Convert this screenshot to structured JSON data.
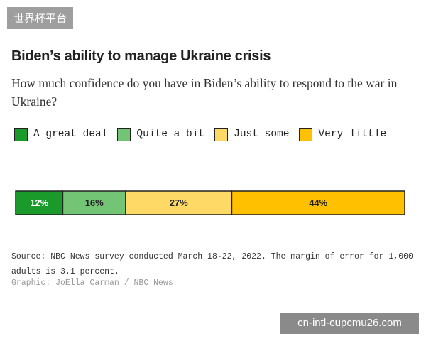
{
  "watermark_top": "世界杯平台",
  "watermark_bottom": "cn-intl-cupcmu26.com",
  "chart_data": {
    "type": "stacked-bar-horizontal",
    "title": "Biden’s ability to manage Ukraine crisis",
    "subtitle": "How much confidence do you have in Biden’s ability to respond to the war in Ukraine?",
    "categories": [
      null
    ],
    "series": [
      {
        "name": "A great deal",
        "color": "#1a9a2a",
        "values": [
          12
        ],
        "value_labels": [
          "12%"
        ]
      },
      {
        "name": "Quite a bit",
        "color": "#74c476",
        "values": [
          16
        ],
        "value_labels": [
          "16%"
        ]
      },
      {
        "name": "Just some",
        "color": "#ffd966",
        "values": [
          27
        ],
        "value_labels": [
          "27%"
        ]
      },
      {
        "name": "Very little",
        "color": "#ffc000",
        "values": [
          44
        ],
        "value_labels": [
          "44%"
        ]
      }
    ],
    "source": "Source: NBC News survey conducted March 18-22, 2022. The margin of error for 1,000 adults is 3.1 percent.",
    "credit": "Graphic: JoElla Carman / NBC News"
  }
}
